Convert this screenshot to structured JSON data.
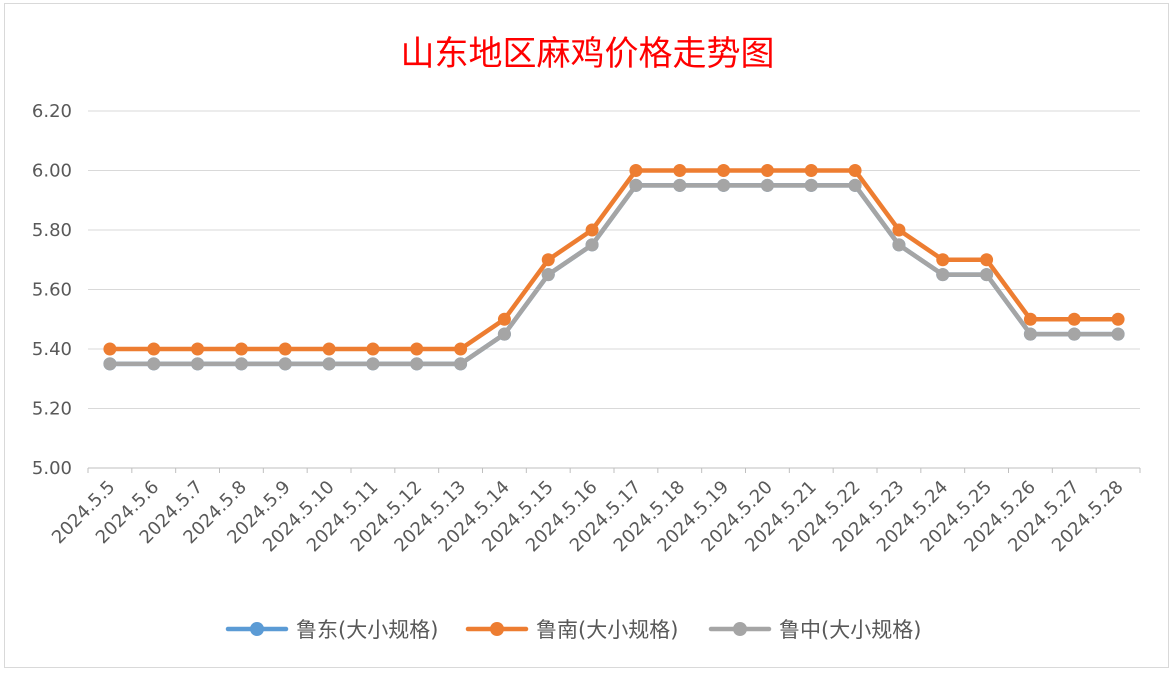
{
  "chart_data": {
    "type": "line",
    "title": "山东地区麻鸡价格走势图",
    "xlabel": "",
    "ylabel": "",
    "ylim": [
      5.0,
      6.2
    ],
    "yticks": [
      "5.00",
      "5.20",
      "5.40",
      "5.60",
      "5.80",
      "6.00",
      "6.20"
    ],
    "grid": "horizontal",
    "legend_position": "bottom",
    "categories": [
      "2024.5.5",
      "2024.5.6",
      "2024.5.7",
      "2024.5.8",
      "2024.5.9",
      "2024.5.10",
      "2024.5.11",
      "2024.5.12",
      "2024.5.13",
      "2024.5.14",
      "2024.5.15",
      "2024.5.16",
      "2024.5.17",
      "2024.5.18",
      "2024.5.19",
      "2024.5.20",
      "2024.5.21",
      "2024.5.22",
      "2024.5.23",
      "2024.5.24",
      "2024.5.25",
      "2024.5.26",
      "2024.5.27",
      "2024.5.28"
    ],
    "series": [
      {
        "name": "鲁东(大小规格)",
        "color": "#5b9bd5",
        "values": [
          5.35,
          5.35,
          5.35,
          5.35,
          5.35,
          5.35,
          5.35,
          5.35,
          5.35,
          5.45,
          5.65,
          5.75,
          5.95,
          5.95,
          5.95,
          5.95,
          5.95,
          5.95,
          5.75,
          5.65,
          5.65,
          5.45,
          5.45,
          5.45
        ]
      },
      {
        "name": "鲁南(大小规格)",
        "color": "#ed7d31",
        "values": [
          5.4,
          5.4,
          5.4,
          5.4,
          5.4,
          5.4,
          5.4,
          5.4,
          5.4,
          5.5,
          5.7,
          5.8,
          6.0,
          6.0,
          6.0,
          6.0,
          6.0,
          6.0,
          5.8,
          5.7,
          5.7,
          5.5,
          5.5,
          5.5
        ]
      },
      {
        "name": "鲁中(大小规格)",
        "color": "#a5a5a5",
        "values": [
          5.35,
          5.35,
          5.35,
          5.35,
          5.35,
          5.35,
          5.35,
          5.35,
          5.35,
          5.45,
          5.65,
          5.75,
          5.95,
          5.95,
          5.95,
          5.95,
          5.95,
          5.95,
          5.75,
          5.65,
          5.65,
          5.45,
          5.45,
          5.45
        ]
      }
    ]
  }
}
